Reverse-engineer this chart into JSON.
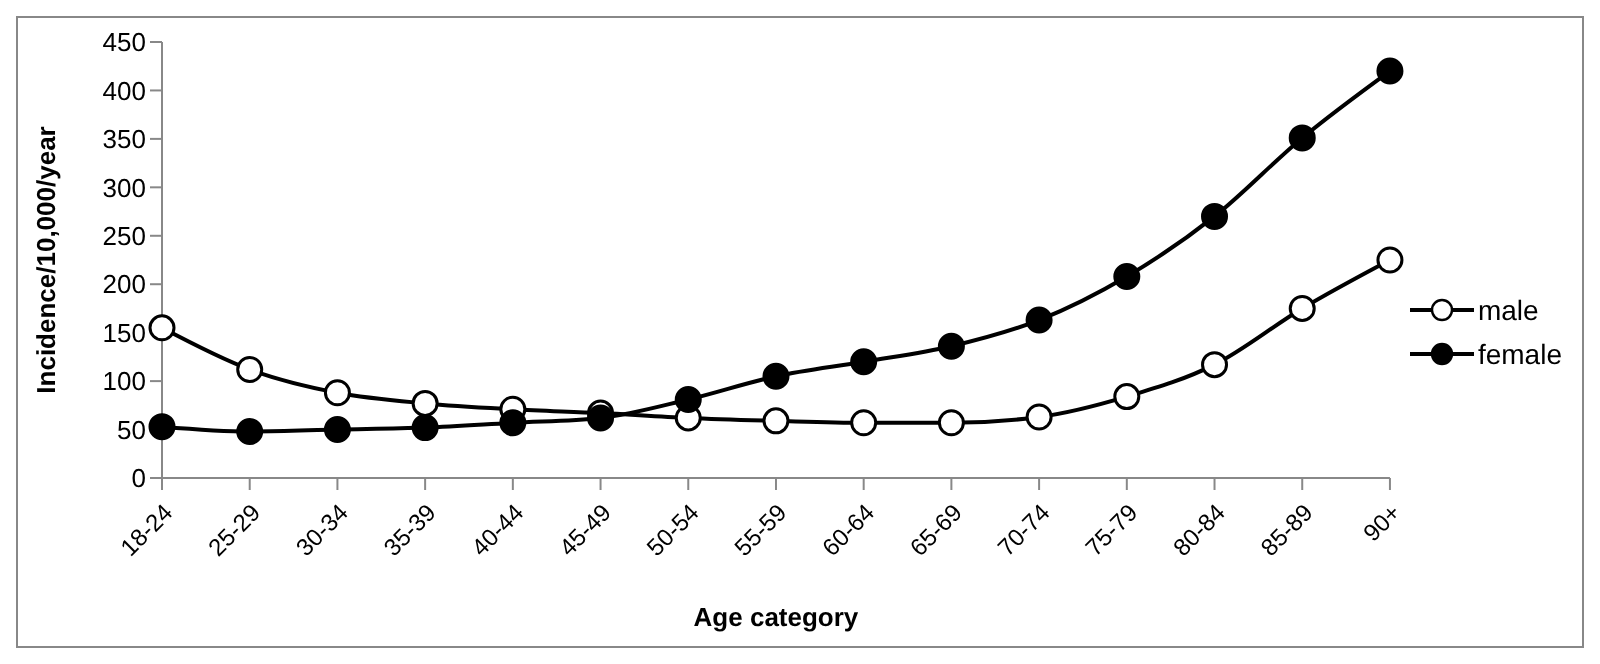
{
  "chart_data": {
    "type": "line",
    "xlabel": "Age category",
    "ylabel": "Incidence/10,000/year",
    "categories": [
      "18-24",
      "25-29",
      "30-34",
      "35-39",
      "40-44",
      "45-49",
      "50-54",
      "55-59",
      "60-64",
      "65-69",
      "70-74",
      "75-79",
      "80-84",
      "85-89",
      "90+"
    ],
    "series": [
      {
        "name": "male",
        "color": "#000000",
        "values": [
          155,
          112,
          88,
          77,
          71,
          67,
          62,
          59,
          57,
          57,
          63,
          84,
          117,
          175,
          225
        ]
      },
      {
        "name": "female",
        "color": "#000000",
        "values": [
          53,
          48,
          50,
          52,
          57,
          62,
          81,
          105,
          120,
          136,
          163,
          208,
          270,
          351,
          420
        ]
      }
    ],
    "ylim": [
      0,
      450
    ],
    "yticks": [
      0,
      50,
      100,
      150,
      200,
      250,
      300,
      350,
      400,
      450
    ],
    "grid": false,
    "legend": "right",
    "marker": "circle",
    "line_style": "solid"
  }
}
